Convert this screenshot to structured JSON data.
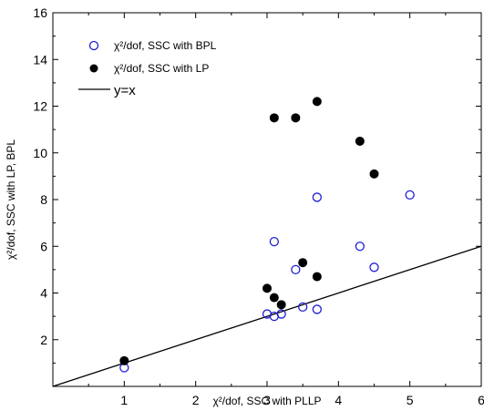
{
  "chart_data": {
    "type": "scatter",
    "xlabel": "χ²/dof, SSC with PLLP",
    "ylabel": "χ²/dof, SSC with LP, BPL",
    "xlim": [
      0,
      6
    ],
    "ylim": [
      0,
      16
    ],
    "xticks": [
      "1",
      "2",
      "3",
      "4",
      "5",
      "6"
    ],
    "yticks": [
      "2",
      "4",
      "6",
      "8",
      "10",
      "12",
      "14",
      "16"
    ],
    "colors": {
      "bpl": "#1f1fd0",
      "lp": "#000000",
      "line": "#000000"
    },
    "legend_placement": "top-left",
    "series": [
      {
        "name": "χ²/dof, SSC with BPL",
        "marker": "open-circle",
        "points": [
          {
            "x": 1.0,
            "y": 0.8
          },
          {
            "x": 3.0,
            "y": 3.1
          },
          {
            "x": 3.1,
            "y": 3.0
          },
          {
            "x": 3.2,
            "y": 3.1
          },
          {
            "x": 3.5,
            "y": 3.4
          },
          {
            "x": 3.7,
            "y": 3.3
          },
          {
            "x": 3.4,
            "y": 5.0
          },
          {
            "x": 3.1,
            "y": 6.2
          },
          {
            "x": 3.7,
            "y": 8.1
          },
          {
            "x": 4.3,
            "y": 6.0
          },
          {
            "x": 4.5,
            "y": 5.1
          },
          {
            "x": 5.0,
            "y": 8.2
          }
        ]
      },
      {
        "name": "χ²/dof, SSC with LP",
        "marker": "filled-circle",
        "points": [
          {
            "x": 1.0,
            "y": 1.1
          },
          {
            "x": 3.0,
            "y": 4.2
          },
          {
            "x": 3.1,
            "y": 3.8
          },
          {
            "x": 3.2,
            "y": 3.5
          },
          {
            "x": 3.5,
            "y": 5.3
          },
          {
            "x": 3.7,
            "y": 4.7
          },
          {
            "x": 3.1,
            "y": 11.5
          },
          {
            "x": 3.4,
            "y": 11.5
          },
          {
            "x": 3.7,
            "y": 12.2
          },
          {
            "x": 4.3,
            "y": 10.5
          },
          {
            "x": 4.5,
            "y": 9.1
          }
        ]
      },
      {
        "name": "y=x",
        "type": "line",
        "points": [
          {
            "x": 0,
            "y": 0
          },
          {
            "x": 6,
            "y": 6
          }
        ]
      }
    ]
  }
}
